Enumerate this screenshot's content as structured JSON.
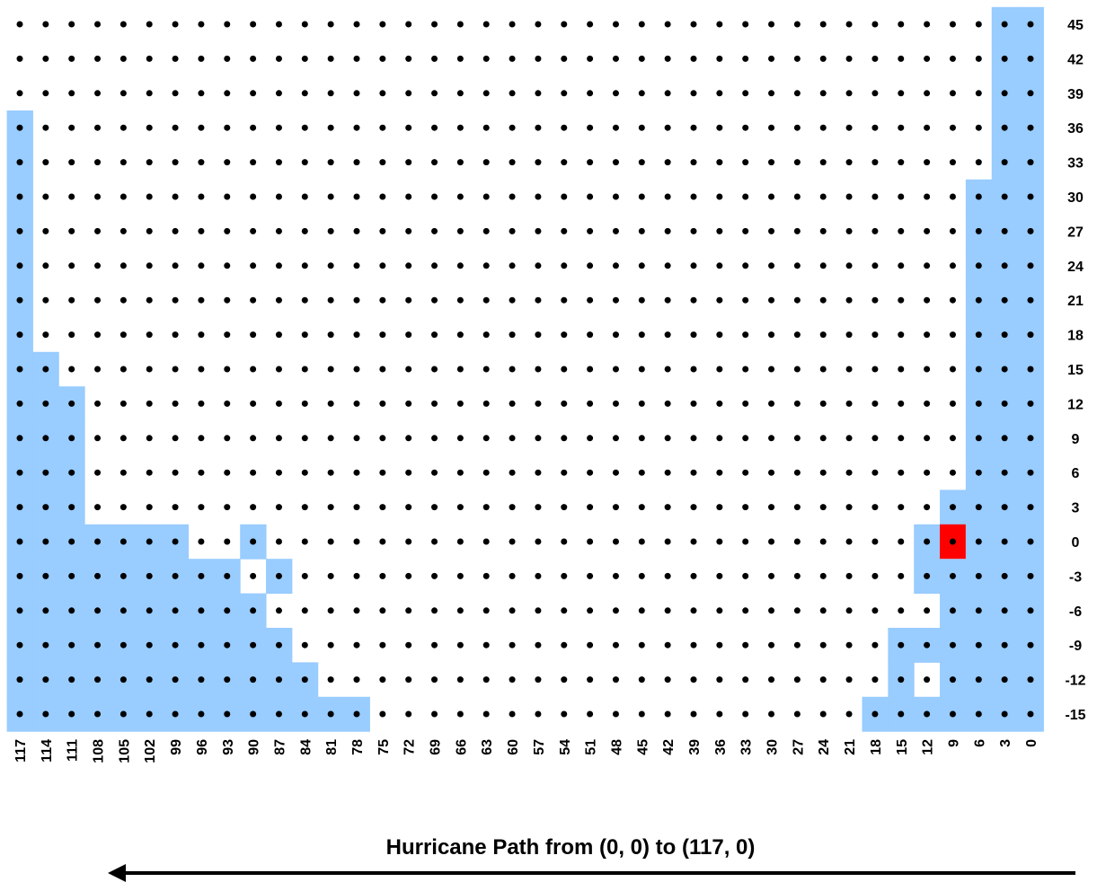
{
  "chart_data": {
    "type": "grid",
    "title": "Hurricane Path from (0, 0) to (117, 0)",
    "xticks": [
      117,
      114,
      111,
      108,
      105,
      102,
      99,
      96,
      93,
      90,
      87,
      84,
      81,
      78,
      75,
      72,
      69,
      66,
      63,
      60,
      57,
      54,
      51,
      48,
      45,
      42,
      39,
      36,
      33,
      30,
      27,
      24,
      21,
      18,
      15,
      12,
      9,
      6,
      3,
      0
    ],
    "yticks": [
      45,
      42,
      39,
      36,
      33,
      30,
      27,
      24,
      21,
      18,
      15,
      12,
      9,
      6,
      3,
      0,
      -3,
      -6,
      -9,
      -12,
      -15
    ],
    "xlim": [
      117,
      0
    ],
    "ylim": [
      -15,
      45
    ],
    "dot_color": "#000000",
    "blue_color": "#99ccff",
    "blue": [
      {
        "y": 45,
        "x": [
          3,
          0
        ]
      },
      {
        "y": 42,
        "x": [
          3,
          0
        ]
      },
      {
        "y": 39,
        "x": [
          3,
          0
        ]
      },
      {
        "y": 36,
        "x": [
          117,
          3,
          0
        ]
      },
      {
        "y": 33,
        "x": [
          117,
          3,
          0
        ]
      },
      {
        "y": 30,
        "x": [
          117,
          6,
          3,
          0
        ]
      },
      {
        "y": 27,
        "x": [
          117,
          6,
          3,
          0
        ]
      },
      {
        "y": 24,
        "x": [
          117,
          6,
          3,
          0
        ]
      },
      {
        "y": 21,
        "x": [
          117,
          6,
          3,
          0
        ]
      },
      {
        "y": 18,
        "x": [
          117,
          6,
          3,
          0
        ]
      },
      {
        "y": 15,
        "x": [
          117,
          114,
          6,
          3,
          0
        ]
      },
      {
        "y": 12,
        "x": [
          117,
          114,
          111,
          6,
          3,
          0
        ]
      },
      {
        "y": 9,
        "x": [
          117,
          114,
          111,
          6,
          3,
          0
        ]
      },
      {
        "y": 6,
        "x": [
          117,
          114,
          111,
          6,
          3,
          0
        ]
      },
      {
        "y": 3,
        "x": [
          117,
          114,
          111,
          9,
          6,
          3,
          0
        ]
      },
      {
        "y": 0,
        "x": [
          117,
          114,
          111,
          108,
          105,
          102,
          99,
          90,
          12,
          6,
          3,
          0
        ]
      },
      {
        "y": -3,
        "x": [
          117,
          114,
          111,
          108,
          105,
          102,
          99,
          96,
          93,
          87,
          12,
          9,
          6,
          3,
          0
        ]
      },
      {
        "y": -6,
        "x": [
          117,
          114,
          111,
          108,
          105,
          102,
          99,
          96,
          93,
          90,
          9,
          6,
          3,
          0
        ]
      },
      {
        "y": -9,
        "x": [
          117,
          114,
          111,
          108,
          105,
          102,
          99,
          96,
          93,
          90,
          87,
          15,
          12,
          9,
          6,
          3,
          0
        ]
      },
      {
        "y": -12,
        "x": [
          117,
          114,
          111,
          108,
          105,
          102,
          99,
          96,
          93,
          90,
          87,
          84,
          15,
          9,
          6,
          3,
          0
        ]
      },
      {
        "y": -15,
        "x": [
          117,
          114,
          111,
          108,
          105,
          102,
          99,
          96,
          93,
          90,
          87,
          84,
          81,
          78,
          18,
          15,
          12,
          9,
          6,
          3,
          0
        ]
      }
    ],
    "current": {
      "color": "#ff0000",
      "x": 9,
      "y": 0
    }
  }
}
